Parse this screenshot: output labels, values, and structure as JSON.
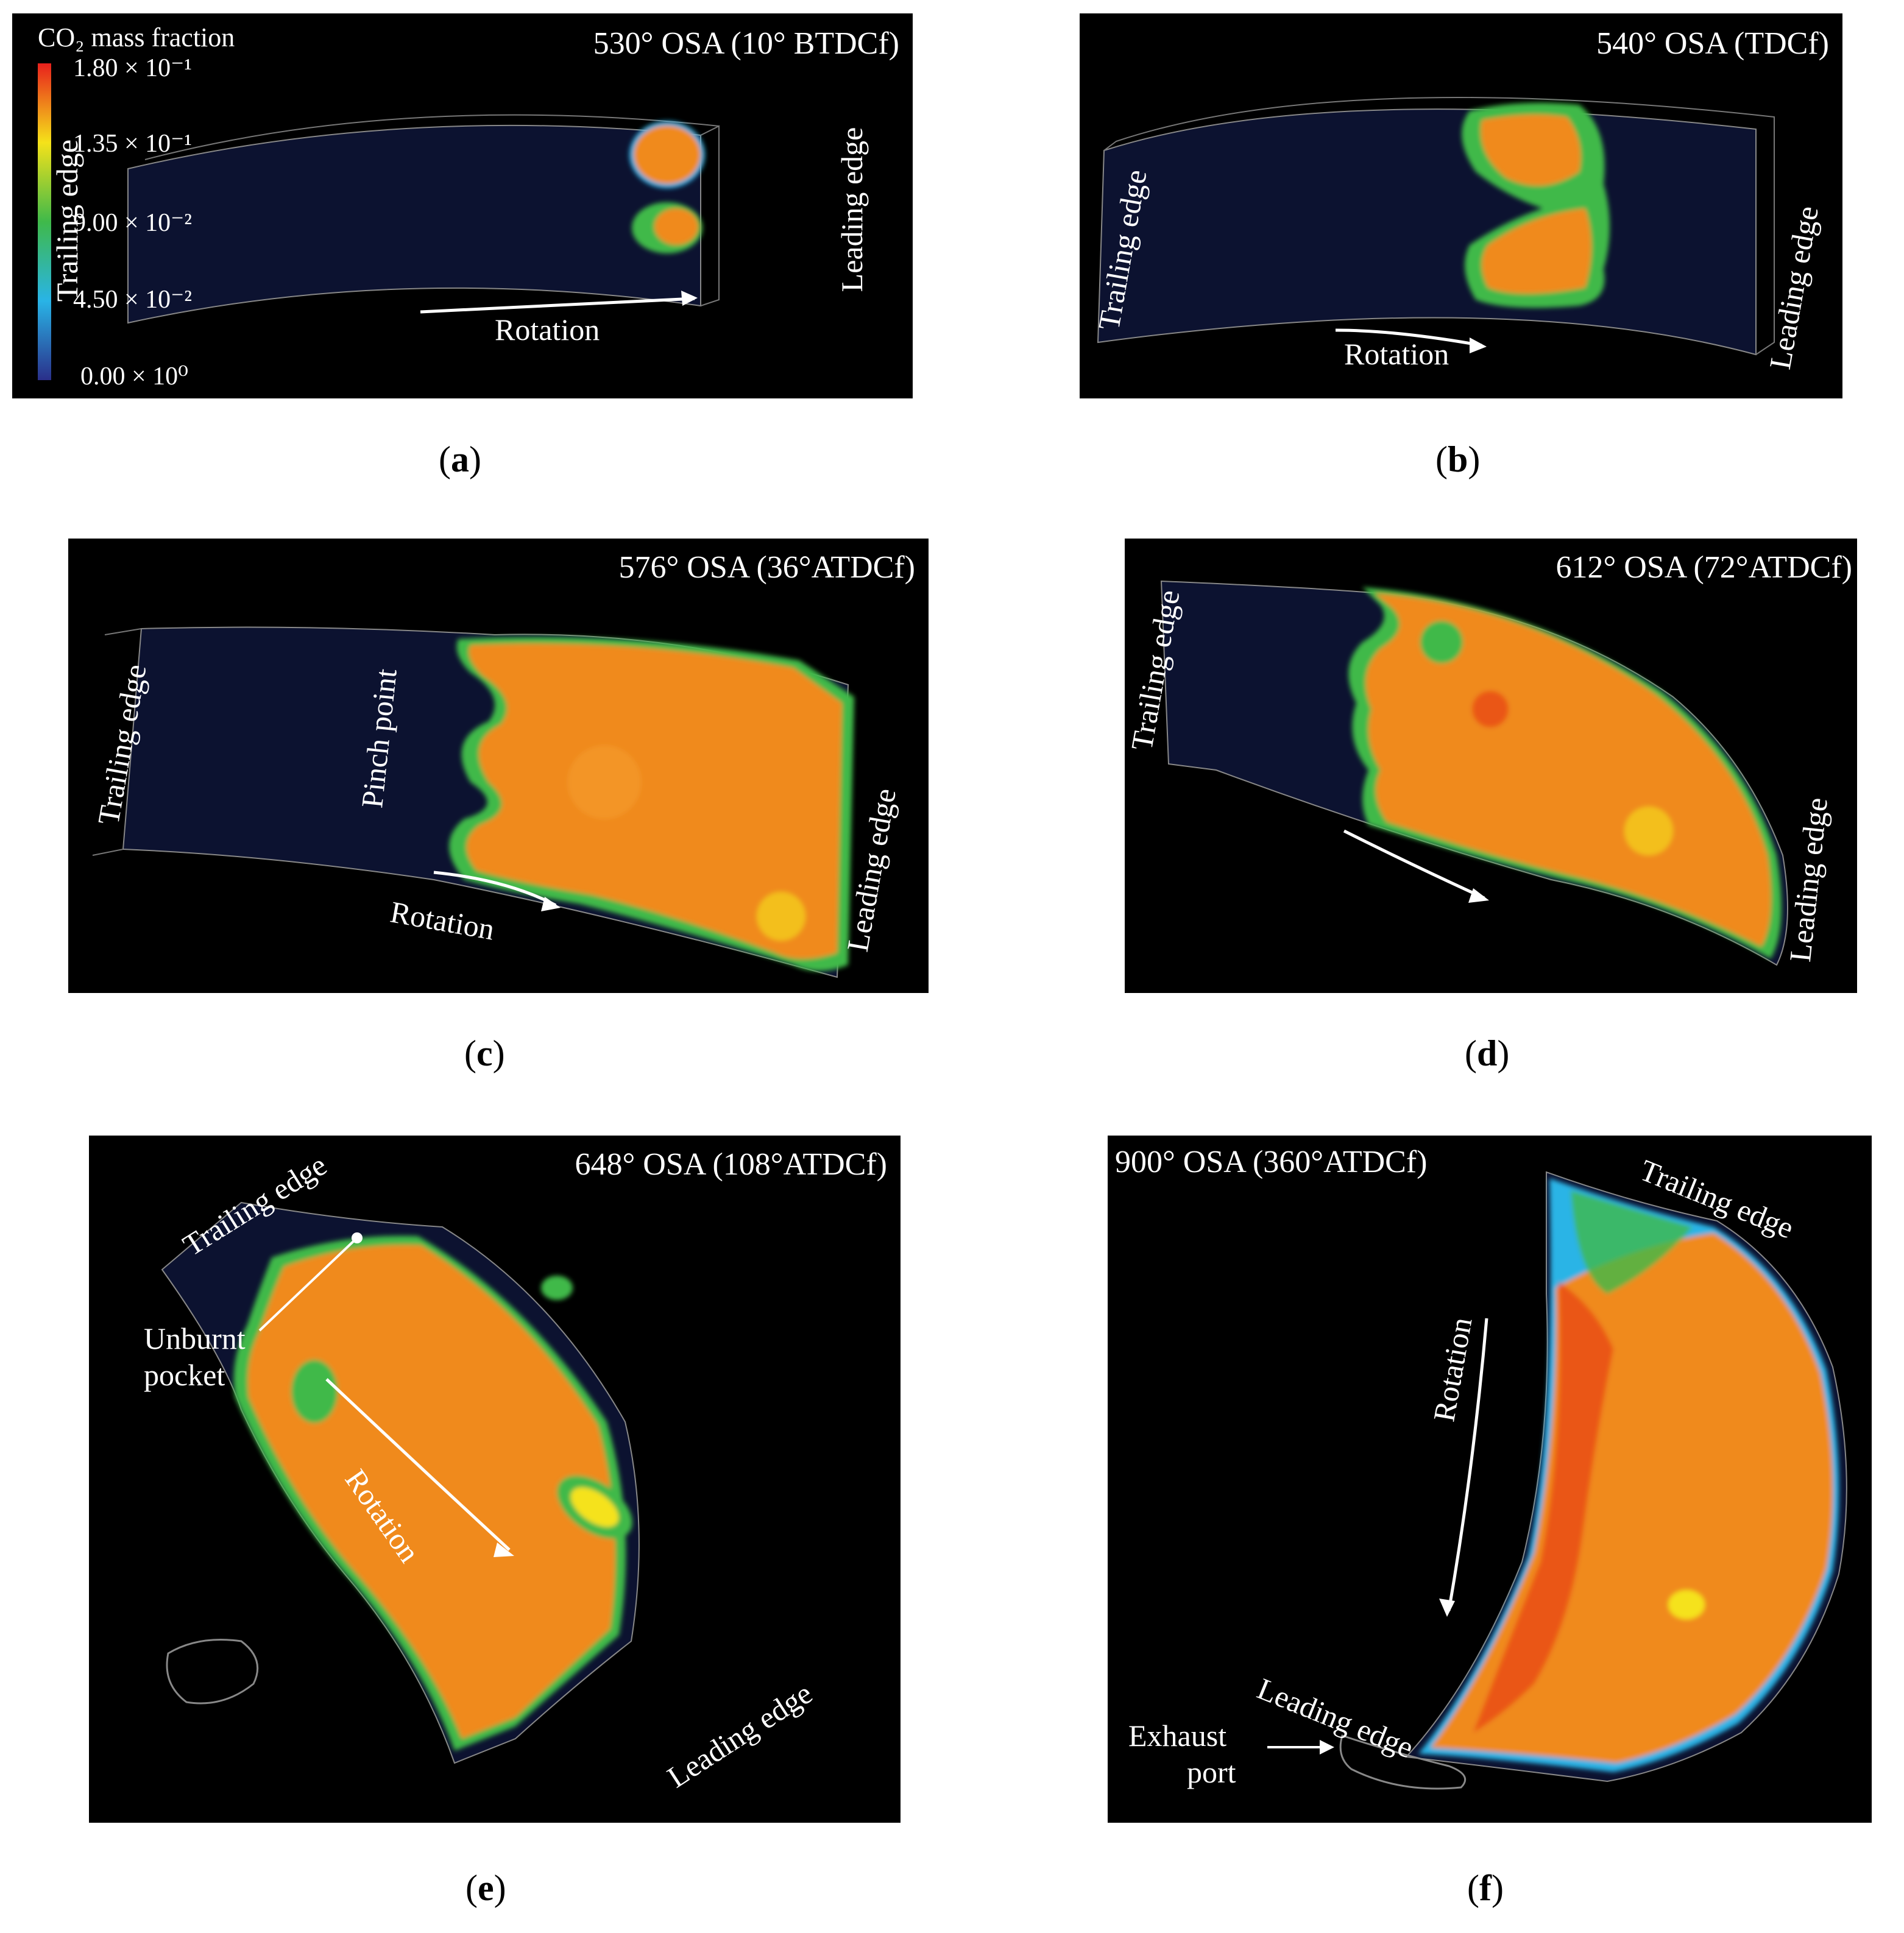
{
  "colorbar": {
    "title": "CO₂ mass fraction",
    "ticks": [
      "1.80 × 10⁻¹",
      "1.35 × 10⁻¹",
      "9.00 × 10⁻²",
      "4.50 × 10⁻²",
      "0.00 × 10⁰"
    ],
    "colors": [
      "#e8201c",
      "#f5e21a",
      "#3fb94a",
      "#29b4e6",
      "#2a2f8a"
    ]
  },
  "panels": {
    "a": {
      "title": "530° OSA (10° BTDCf)",
      "trailing": "Trailing edge",
      "leading": "Leading edge",
      "rotation": "Rotation",
      "caption_letter": "a"
    },
    "b": {
      "title": "540° OSA (TDCf)",
      "trailing": "Trailing edge",
      "leading": "Leading edge",
      "rotation": "Rotation",
      "caption_letter": "b"
    },
    "c": {
      "title": "576° OSA (36°ATDCf)",
      "trailing": "Trailing edge",
      "leading": "Leading edge",
      "rotation": "Rotation",
      "pinch": "Pinch point",
      "caption_letter": "c"
    },
    "d": {
      "title": "612° OSA (72°ATDCf)",
      "trailing": "Trailing edge",
      "leading": "Leading edge",
      "caption_letter": "d"
    },
    "e": {
      "title": "648° OSA (108°ATDCf)",
      "trailing": "Trailing edge",
      "leading": "Leading edge",
      "rotation": "Rotation",
      "unburnt_1": "Unburnt",
      "unburnt_2": "pocket",
      "caption_letter": "e"
    },
    "f": {
      "title": "900° OSA (360°ATDCf)",
      "trailing": "Trailing edge",
      "leading": "Leading edge",
      "rotation": "Rotation",
      "exhaust_1": "Exhaust",
      "exhaust_2": "port",
      "caption_letter": "f"
    }
  },
  "colors": {
    "burnt": "#f08a1c",
    "hot": "#e84a16",
    "mid": "#3fb94a",
    "cold": "#0c1230"
  }
}
